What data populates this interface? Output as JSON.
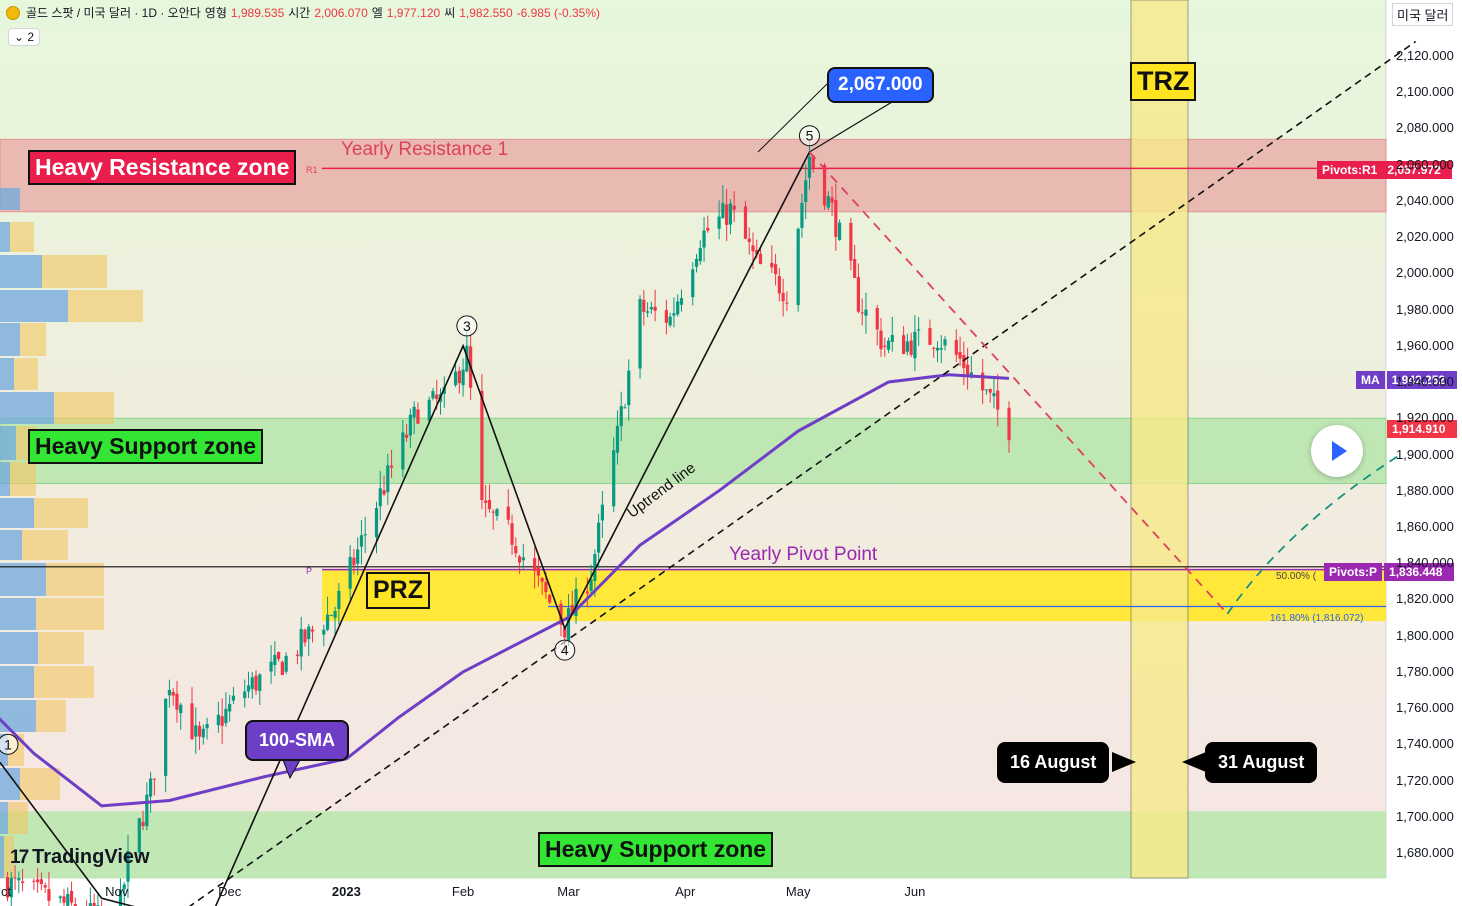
{
  "header": {
    "symbol": "골드 스팟 / 미국 달러 · 1D · 오안다",
    "open_label": "영형",
    "open": "1,989.535",
    "high_label": "시간",
    "high": "2,006.070",
    "low_label": "엘",
    "low": "1,977.120",
    "close_label": "씨",
    "close": "1,982.550",
    "change": "-6.985 (-0.35%)",
    "indicator_toggle": "⌄ 2",
    "currency": "미국 달러"
  },
  "price_axis": {
    "ticks": [
      "2,120.000",
      "2,100.000",
      "2,080.000",
      "2,060.000",
      "2,040.000",
      "2,020.000",
      "2,000.000",
      "1,980.000",
      "1,960.000",
      "1,940.000",
      "1,920.000",
      "1,900.000",
      "1,880.000",
      "1,860.000",
      "1,840.000",
      "1,820.000",
      "1,800.000",
      "1,780.000",
      "1,760.000",
      "1,740.000",
      "1,720.000",
      "1,700.000",
      "1,680.000"
    ],
    "tags": [
      {
        "name": "Pivots:R1",
        "value": "2,057.972",
        "color": "#e91e4d"
      },
      {
        "name": "MA",
        "value": "1,942.252",
        "color": "#6e3fc6"
      },
      {
        "name": "",
        "value": "1,914.910",
        "color": "#f23645"
      },
      {
        "name": "Pivots:P",
        "value": "1,836.448",
        "color": "#9c27b0"
      }
    ]
  },
  "time_axis": {
    "ticks": [
      "ct",
      "Nov",
      "Dec",
      "2023",
      "Feb",
      "Mar",
      "Apr",
      "May",
      "Jun"
    ]
  },
  "annotations": {
    "heavy_resistance": "Heavy Resistance zone",
    "heavy_support": "Heavy Support zone",
    "heavy_support_2": "Heavy Support zone",
    "yearly_resistance": "Yearly Resistance 1",
    "r1_marker": "R1",
    "yearly_pivot": "Yearly Pivot Point",
    "p_marker": "P",
    "prz": "PRZ",
    "trz": "TRZ",
    "uptrend": "Uptrend line",
    "sma": "100-SMA",
    "target_price": "2,067.000",
    "date_start": "16 August",
    "date_end": "31 August",
    "fib_50": "50.00% (",
    "fib_161": "161.80% (1,816.072)",
    "wave_labels": [
      "1",
      "3",
      "4",
      "5"
    ],
    "logo": "TradingView"
  },
  "colors": {
    "resistance_zone": "#e8b4ae",
    "support_zone": "#b7e6ad",
    "prz_zone": "#ffe83a",
    "trz_zone": "#f7ea8a",
    "sma_line": "#6e3fc6",
    "r1_line": "#e91e4d",
    "candle_up": "#089981",
    "candle_down": "#f23645"
  },
  "chart_data": {
    "type": "candlestick",
    "symbol": "XAUUSD",
    "timeframe": "1D",
    "ylim": [
      1665,
      2135
    ],
    "x_ticks": [
      "ct",
      "Nov",
      "Dec",
      "2023",
      "Feb",
      "Mar",
      "Apr",
      "May",
      "Jun"
    ],
    "key_levels": {
      "pivot_r1": 2057.972,
      "pivot_p": 1836.448,
      "sma_100_last": 1942.252,
      "last_price": 1914.91,
      "target_high": 2067.0,
      "fib_161_8": 1816.072
    },
    "zones": {
      "heavy_resistance": [
        2034,
        2074
      ],
      "heavy_support_upper": [
        1884,
        1920
      ],
      "prz": [
        1808,
        1836
      ],
      "heavy_support_lower": [
        1666,
        1703
      ]
    },
    "close_path": [
      {
        "date": "2022-10-01",
        "close": 1665
      },
      {
        "date": "2022-10-20",
        "close": 1650
      },
      {
        "date": "2022-11-01",
        "close": 1640
      },
      {
        "date": "2022-11-04",
        "close": 1675
      },
      {
        "date": "2022-11-10",
        "close": 1715
      },
      {
        "date": "2022-11-15",
        "close": 1775
      },
      {
        "date": "2022-11-23",
        "close": 1740
      },
      {
        "date": "2022-12-05",
        "close": 1770
      },
      {
        "date": "2022-12-15",
        "close": 1785
      },
      {
        "date": "2022-12-29",
        "close": 1815
      },
      {
        "date": "2023-01-10",
        "close": 1878
      },
      {
        "date": "2023-01-20",
        "close": 1925
      },
      {
        "date": "2023-01-27",
        "close": 1930
      },
      {
        "date": "2023-02-02",
        "close": 1955
      },
      {
        "date": "2023-02-06",
        "close": 1870
      },
      {
        "date": "2023-02-14",
        "close": 1855
      },
      {
        "date": "2023-02-22",
        "close": 1825
      },
      {
        "date": "2023-02-28",
        "close": 1805
      },
      {
        "date": "2023-03-07",
        "close": 1835
      },
      {
        "date": "2023-03-14",
        "close": 1910
      },
      {
        "date": "2023-03-20",
        "close": 1980
      },
      {
        "date": "2023-03-28",
        "close": 1975
      },
      {
        "date": "2023-04-05",
        "close": 2020
      },
      {
        "date": "2023-04-13",
        "close": 2035
      },
      {
        "date": "2023-04-20",
        "close": 2005
      },
      {
        "date": "2023-04-28",
        "close": 1990
      },
      {
        "date": "2023-05-04",
        "close": 2065
      },
      {
        "date": "2023-05-10",
        "close": 2035
      },
      {
        "date": "2023-05-17",
        "close": 1985
      },
      {
        "date": "2023-05-24",
        "close": 1960
      },
      {
        "date": "2023-05-31",
        "close": 1962
      },
      {
        "date": "2023-06-07",
        "close": 1965
      },
      {
        "date": "2023-06-14",
        "close": 1950
      },
      {
        "date": "2023-06-21",
        "close": 1930
      },
      {
        "date": "2023-06-26",
        "close": 1915
      }
    ],
    "sma_100": [
      {
        "date": "2022-09-28",
        "value": 1760
      },
      {
        "date": "2022-10-10",
        "value": 1735
      },
      {
        "date": "2022-10-28",
        "value": 1706
      },
      {
        "date": "2022-11-15",
        "value": 1709
      },
      {
        "date": "2022-12-10",
        "value": 1722
      },
      {
        "date": "2023-01-01",
        "value": 1732
      },
      {
        "date": "2023-01-15",
        "value": 1755
      },
      {
        "date": "2023-02-01",
        "value": 1780
      },
      {
        "date": "2023-03-01",
        "value": 1810
      },
      {
        "date": "2023-03-20",
        "value": 1850
      },
      {
        "date": "2023-04-10",
        "value": 1880
      },
      {
        "date": "2023-05-01",
        "value": 1913
      },
      {
        "date": "2023-05-25",
        "value": 1940
      },
      {
        "date": "2023-06-10",
        "value": 1944
      },
      {
        "date": "2023-06-26",
        "value": 1942
      }
    ],
    "projection": [
      {
        "date": "2023-05-04",
        "value": 2067
      },
      {
        "date": "2023-08-23",
        "value": 1812
      },
      {
        "date": "2023-10-08",
        "value": 1900
      }
    ]
  }
}
